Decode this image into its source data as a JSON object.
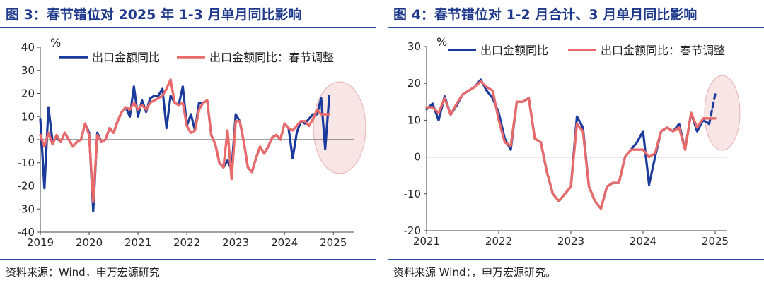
{
  "left": {
    "title": "图 3：春节错位对 2025 年 1-3 月单月同比影响",
    "source": "资料来源：Wind，申万宏源研究",
    "chart_data": {
      "type": "line",
      "yunit": "%",
      "ylim": [
        -40,
        40
      ],
      "yticks": [
        -40,
        -30,
        -20,
        -10,
        0,
        10,
        20,
        30,
        40
      ],
      "xlim": [
        0,
        77
      ],
      "xticks": [
        {
          "label": "2019",
          "x": 0
        },
        {
          "label": "2020",
          "x": 12
        },
        {
          "label": "2021",
          "x": 24
        },
        {
          "label": "2022",
          "x": 36
        },
        {
          "label": "2023",
          "x": 48
        },
        {
          "label": "2024",
          "x": 60
        },
        {
          "label": "2025",
          "x": 72
        }
      ],
      "series": [
        {
          "name": "出口金额同比",
          "color": "#1a3a9c",
          "values": [
            9,
            -21,
            14,
            -1,
            1,
            -1,
            3,
            0,
            -3,
            -1,
            0,
            7,
            3,
            -31,
            3,
            -1,
            0,
            5,
            3,
            8,
            12,
            14,
            10,
            23,
            10,
            17,
            12,
            18,
            19,
            19,
            22,
            5,
            19,
            16,
            15,
            23,
            6,
            11,
            4,
            16,
            16,
            17,
            2,
            -2,
            -10,
            -12,
            -9,
            -13,
            11,
            8,
            -1,
            -12,
            -14,
            -8,
            -3,
            -6,
            -3,
            1,
            2,
            0,
            7,
            5,
            -8,
            3,
            8,
            7,
            9,
            11,
            11,
            18,
            -4,
            19
          ]
        },
        {
          "name": "出口金额同比：春节调整",
          "color": "#e86a6a",
          "values": [
            2,
            -3,
            3,
            -2,
            2,
            -1,
            3,
            0,
            -3,
            -1,
            0,
            7,
            2,
            -27,
            2,
            -1,
            0,
            5,
            3,
            8,
            12,
            14,
            13,
            16,
            13,
            15,
            13,
            16,
            17,
            18,
            19,
            22,
            26,
            16,
            15,
            16,
            6,
            3,
            4,
            13,
            16,
            17,
            2,
            -2,
            -10,
            -12,
            4,
            -17,
            8,
            8,
            -1,
            -12,
            -14,
            -8,
            -3,
            -6,
            -3,
            1,
            2,
            0,
            7,
            5,
            4,
            6,
            8,
            8,
            6,
            9,
            13,
            11,
            11,
            11
          ]
        }
      ]
    }
  },
  "right": {
    "title": "图 4：春节错位对 1-2 月合计、3 月单月同比影响",
    "source": "资料来源 Wind：，申万宏源研究。",
    "chart_data": {
      "type": "line",
      "yunit": "%",
      "ylim": [
        -20,
        30
      ],
      "yticks": [
        -20,
        -10,
        0,
        10,
        20,
        30
      ],
      "xlim": [
        0,
        50
      ],
      "xticks": [
        {
          "label": "2021",
          "x": 0
        },
        {
          "label": "2022",
          "x": 12
        },
        {
          "label": "2023",
          "x": 24
        },
        {
          "label": "2024",
          "x": 36
        },
        {
          "label": "2025",
          "x": 48
        }
      ],
      "series": [
        {
          "name": "出口金额同比",
          "color": "#1a3a9c",
          "dashed_last_segment": true,
          "values": [
            13,
            14.5,
            10,
            16.5,
            11.5,
            14,
            17,
            18,
            19,
            21,
            18,
            16,
            12,
            5,
            2,
            15,
            15,
            16,
            5,
            4,
            -4,
            -10,
            -12,
            -10,
            -8,
            11,
            8,
            -8,
            -12,
            -14,
            -8,
            -7,
            -7,
            0,
            2,
            4,
            7,
            -7.5,
            0,
            7,
            8,
            7,
            9,
            2,
            12,
            7,
            10,
            9,
            17
          ]
        },
        {
          "name": "出口金额同比：春节调整",
          "color": "#e86a6a",
          "values": [
            13.5,
            13.5,
            12,
            16,
            11.5,
            14.5,
            17,
            18,
            19,
            20.5,
            19,
            18,
            10,
            4,
            3,
            15,
            15,
            16,
            5,
            4,
            -4,
            -10,
            -12,
            -10,
            -8,
            9,
            7,
            -8,
            -12,
            -14,
            -8,
            -7,
            -7,
            0,
            2,
            2,
            2,
            0,
            1,
            7,
            8,
            7,
            8,
            2,
            12,
            8,
            10.5,
            10.5,
            10.5
          ]
        }
      ]
    }
  }
}
